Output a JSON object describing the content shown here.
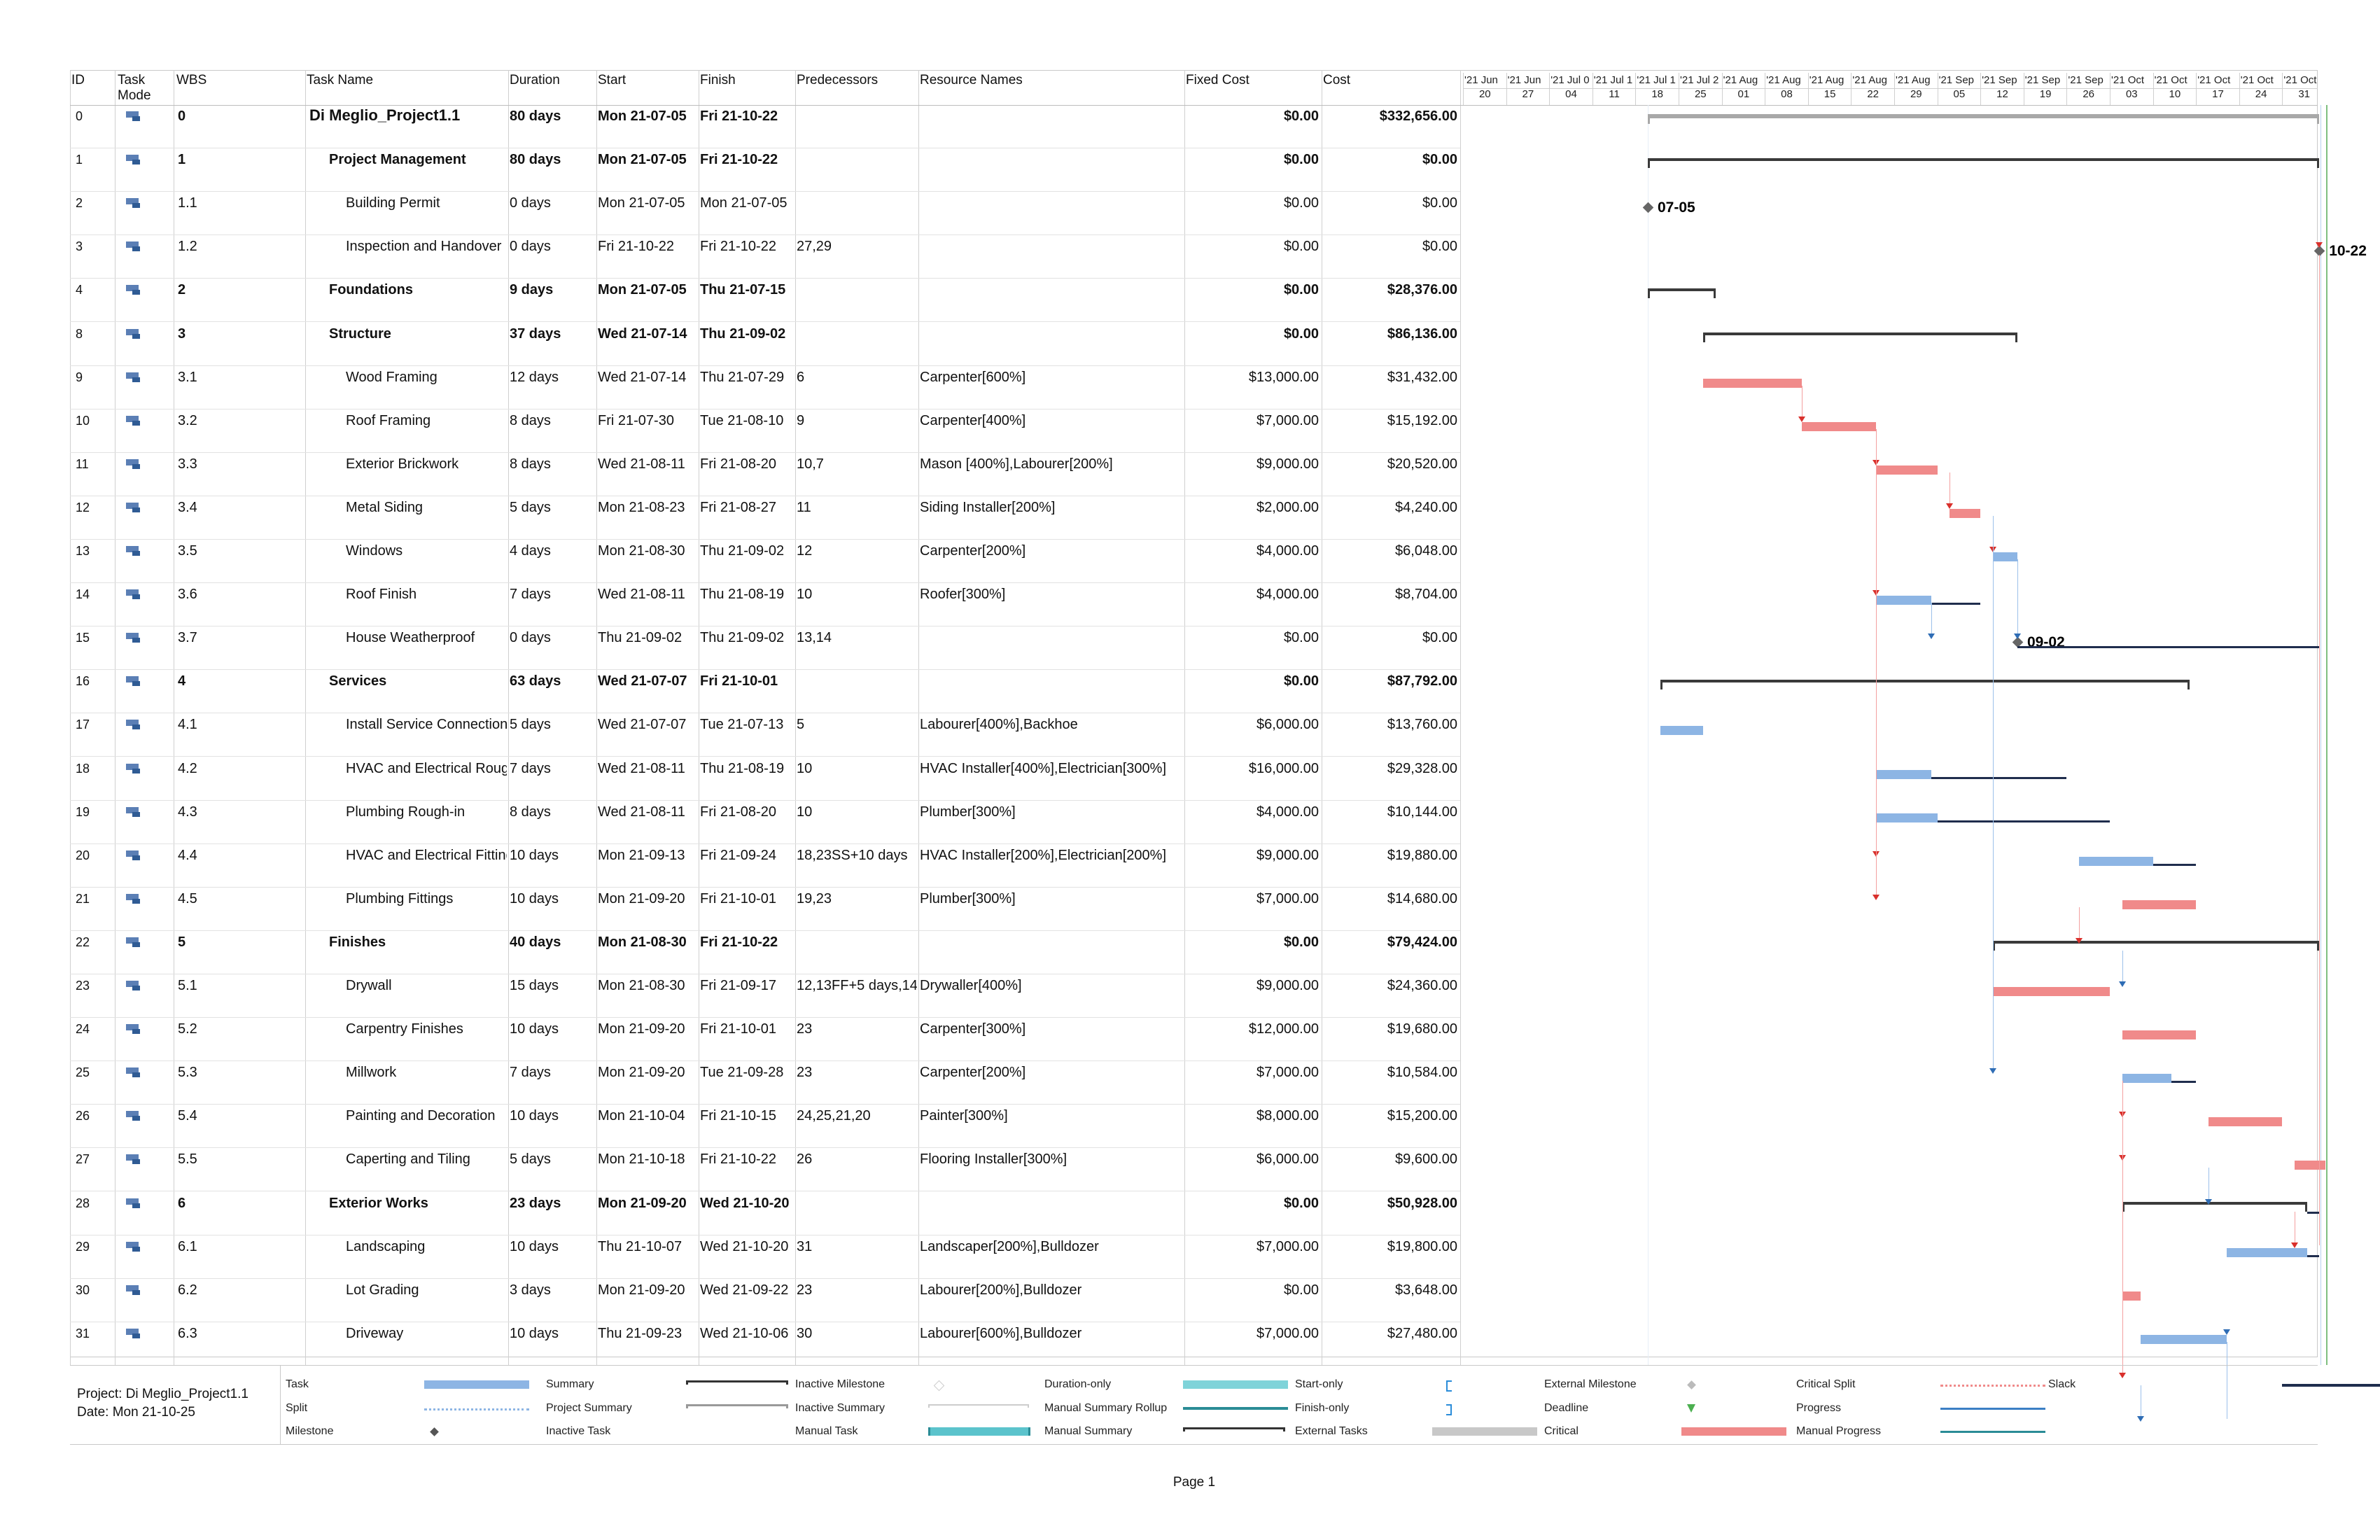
{
  "columns": {
    "id": "ID",
    "task_mode": "Task\nMode",
    "wbs": "WBS",
    "task_name": "Task Name",
    "duration": "Duration",
    "start": "Start",
    "finish": "Finish",
    "predecessors": "Predecessors",
    "resources": "Resource Names",
    "fixed_cost": "Fixed Cost",
    "cost": "Cost"
  },
  "timescale": [
    {
      "top": "'21 Jun",
      "bottom": "20"
    },
    {
      "top": "'21 Jun",
      "bottom": "27"
    },
    {
      "top": "'21 Jul 0",
      "bottom": "04"
    },
    {
      "top": "'21 Jul 1",
      "bottom": "11"
    },
    {
      "top": "'21 Jul 1",
      "bottom": "18"
    },
    {
      "top": "'21 Jul 2",
      "bottom": "25"
    },
    {
      "top": "'21 Aug",
      "bottom": "01"
    },
    {
      "top": "'21 Aug",
      "bottom": "08"
    },
    {
      "top": "'21 Aug",
      "bottom": "15"
    },
    {
      "top": "'21 Aug",
      "bottom": "22"
    },
    {
      "top": "'21 Aug",
      "bottom": "29"
    },
    {
      "top": "'21 Sep",
      "bottom": "05"
    },
    {
      "top": "'21 Sep",
      "bottom": "12"
    },
    {
      "top": "'21 Sep",
      "bottom": "19"
    },
    {
      "top": "'21 Sep",
      "bottom": "26"
    },
    {
      "top": "'21 Oct",
      "bottom": "03"
    },
    {
      "top": "'21 Oct",
      "bottom": "10"
    },
    {
      "top": "'21 Oct",
      "bottom": "17"
    },
    {
      "top": "'21 Oct",
      "bottom": "24"
    },
    {
      "top": "'21 Oct",
      "bottom": "31"
    }
  ],
  "tasks": [
    {
      "id": "0",
      "wbs": "0",
      "name": "Di Meglio_Project1.1",
      "duration": "80 days",
      "start": "Mon 21-07-05",
      "finish": "Fri 21-10-22",
      "pred": "",
      "res": "",
      "fixed": "$0.00",
      "cost": "$332,656.00",
      "kind": "project",
      "level": 0,
      "s": 15,
      "f": 124,
      "critical": false
    },
    {
      "id": "1",
      "wbs": "1",
      "name": "Project Management",
      "duration": "80 days",
      "start": "Mon 21-07-05",
      "finish": "Fri 21-10-22",
      "pred": "",
      "res": "",
      "fixed": "$0.00",
      "cost": "$0.00",
      "kind": "summary",
      "level": 1,
      "s": 15,
      "f": 124,
      "critical": false
    },
    {
      "id": "2",
      "wbs": "1.1",
      "name": "Building Permit",
      "duration": "0 days",
      "start": "Mon 21-07-05",
      "finish": "Mon 21-07-05",
      "pred": "",
      "res": "",
      "fixed": "$0.00",
      "cost": "$0.00",
      "kind": "milestone",
      "level": 2,
      "s": 15,
      "f": 15,
      "critical": false,
      "label": "07-05"
    },
    {
      "id": "3",
      "wbs": "1.2",
      "name": "Inspection and Handover",
      "duration": "0 days",
      "start": "Fri 21-10-22",
      "finish": "Fri 21-10-22",
      "pred": "27,29",
      "res": "",
      "fixed": "$0.00",
      "cost": "$0.00",
      "kind": "milestone",
      "level": 2,
      "s": 124,
      "f": 124,
      "critical": false,
      "label": "10-22"
    },
    {
      "id": "4",
      "wbs": "2",
      "name": "Foundations",
      "duration": "9 days",
      "start": "Mon 21-07-05",
      "finish": "Thu 21-07-15",
      "pred": "",
      "res": "",
      "fixed": "$0.00",
      "cost": "$28,376.00",
      "kind": "summary",
      "level": 1,
      "s": 15,
      "f": 26,
      "critical": false
    },
    {
      "id": "8",
      "wbs": "3",
      "name": "Structure",
      "duration": "37 days",
      "start": "Wed 21-07-14",
      "finish": "Thu 21-09-02",
      "pred": "",
      "res": "",
      "fixed": "$0.00",
      "cost": "$86,136.00",
      "kind": "summary",
      "level": 1,
      "s": 24,
      "f": 75,
      "critical": false
    },
    {
      "id": "9",
      "wbs": "3.1",
      "name": "Wood Framing",
      "duration": "12 days",
      "start": "Wed 21-07-14",
      "finish": "Thu 21-07-29",
      "pred": "6",
      "res": "Carpenter[600%]",
      "fixed": "$13,000.00",
      "cost": "$31,432.00",
      "kind": "task",
      "level": 2,
      "s": 24,
      "f": 40,
      "critical": true
    },
    {
      "id": "10",
      "wbs": "3.2",
      "name": "Roof Framing",
      "duration": "8 days",
      "start": "Fri 21-07-30",
      "finish": "Tue 21-08-10",
      "pred": "9",
      "res": "Carpenter[400%]",
      "fixed": "$7,000.00",
      "cost": "$15,192.00",
      "kind": "task",
      "level": 2,
      "s": 40,
      "f": 52,
      "critical": true
    },
    {
      "id": "11",
      "wbs": "3.3",
      "name": "Exterior Brickwork",
      "duration": "8 days",
      "start": "Wed 21-08-11",
      "finish": "Fri 21-08-20",
      "pred": "10,7",
      "res": "Mason [400%],Labourer[200%]",
      "fixed": "$9,000.00",
      "cost": "$20,520.00",
      "kind": "task",
      "level": 2,
      "s": 52,
      "f": 62,
      "critical": true
    },
    {
      "id": "12",
      "wbs": "3.4",
      "name": "Metal Siding",
      "duration": "5 days",
      "start": "Mon 21-08-23",
      "finish": "Fri 21-08-27",
      "pred": "11",
      "res": "Siding Installer[200%]",
      "fixed": "$2,000.00",
      "cost": "$4,240.00",
      "kind": "task",
      "level": 2,
      "s": 64,
      "f": 69,
      "critical": true
    },
    {
      "id": "13",
      "wbs": "3.5",
      "name": "Windows",
      "duration": "4 days",
      "start": "Mon 21-08-30",
      "finish": "Thu 21-09-02",
      "pred": "12",
      "res": "Carpenter[200%]",
      "fixed": "$4,000.00",
      "cost": "$6,048.00",
      "kind": "task",
      "level": 2,
      "s": 71,
      "f": 75,
      "critical": false
    },
    {
      "id": "14",
      "wbs": "3.6",
      "name": "Roof Finish",
      "duration": "7 days",
      "start": "Wed 21-08-11",
      "finish": "Thu 21-08-19",
      "pred": "10",
      "res": "Roofer[300%]",
      "fixed": "$4,000.00",
      "cost": "$8,704.00",
      "kind": "task",
      "level": 2,
      "s": 52,
      "f": 61,
      "critical": false,
      "slack": 69
    },
    {
      "id": "15",
      "wbs": "3.7",
      "name": "House Weatherproof",
      "duration": "0 days",
      "start": "Thu 21-09-02",
      "finish": "Thu 21-09-02",
      "pred": "13,14",
      "res": "",
      "fixed": "$0.00",
      "cost": "$0.00",
      "kind": "milestone",
      "level": 2,
      "s": 75,
      "f": 75,
      "critical": false,
      "label": "09-02",
      "slack": 124
    },
    {
      "id": "16",
      "wbs": "4",
      "name": "Services",
      "duration": "63 days",
      "start": "Wed 21-07-07",
      "finish": "Fri 21-10-01",
      "pred": "",
      "res": "",
      "fixed": "$0.00",
      "cost": "$87,792.00",
      "kind": "summary",
      "level": 1,
      "s": 17,
      "f": 103,
      "critical": false
    },
    {
      "id": "17",
      "wbs": "4.1",
      "name": "Install Service Connections",
      "duration": "5 days",
      "start": "Wed 21-07-07",
      "finish": "Tue 21-07-13",
      "pred": "5",
      "res": "Labourer[400%],Backhoe",
      "fixed": "$6,000.00",
      "cost": "$13,760.00",
      "kind": "task",
      "level": 2,
      "s": 17,
      "f": 24,
      "critical": false
    },
    {
      "id": "18",
      "wbs": "4.2",
      "name": "HVAC and Electrical Rough-in",
      "duration": "7 days",
      "start": "Wed 21-08-11",
      "finish": "Thu 21-08-19",
      "pred": "10",
      "res": "HVAC Installer[400%],Electrician[300%]",
      "fixed": "$16,000.00",
      "cost": "$29,328.00",
      "kind": "task",
      "level": 2,
      "s": 52,
      "f": 61,
      "critical": false,
      "slack": 83
    },
    {
      "id": "19",
      "wbs": "4.3",
      "name": "Plumbing Rough-in",
      "duration": "8 days",
      "start": "Wed 21-08-11",
      "finish": "Fri 21-08-20",
      "pred": "10",
      "res": "Plumber[300%]",
      "fixed": "$4,000.00",
      "cost": "$10,144.00",
      "kind": "task",
      "level": 2,
      "s": 52,
      "f": 62,
      "critical": false,
      "slack": 90
    },
    {
      "id": "20",
      "wbs": "4.4",
      "name": "HVAC and Electrical Fittings",
      "duration": "10 days",
      "start": "Mon 21-09-13",
      "finish": "Fri 21-09-24",
      "pred": "18,23SS+10 days",
      "res": "HVAC Installer[200%],Electrician[200%]",
      "fixed": "$9,000.00",
      "cost": "$19,880.00",
      "kind": "task",
      "level": 2,
      "s": 85,
      "f": 97,
      "critical": false,
      "slack": 104
    },
    {
      "id": "21",
      "wbs": "4.5",
      "name": "Plumbing Fittings",
      "duration": "10 days",
      "start": "Mon 21-09-20",
      "finish": "Fri 21-10-01",
      "pred": "19,23",
      "res": "Plumber[300%]",
      "fixed": "$7,000.00",
      "cost": "$14,680.00",
      "kind": "task",
      "level": 2,
      "s": 92,
      "f": 104,
      "critical": true
    },
    {
      "id": "22",
      "wbs": "5",
      "name": "Finishes",
      "duration": "40 days",
      "start": "Mon 21-08-30",
      "finish": "Fri 21-10-22",
      "pred": "",
      "res": "",
      "fixed": "$0.00",
      "cost": "$79,424.00",
      "kind": "summary",
      "level": 1,
      "s": 71,
      "f": 124,
      "critical": false
    },
    {
      "id": "23",
      "wbs": "5.1",
      "name": "Drywall",
      "duration": "15 days",
      "start": "Mon 21-08-30",
      "finish": "Fri 21-09-17",
      "pred": "12,13FF+5 days,14",
      "res": "Drywaller[400%]",
      "fixed": "$9,000.00",
      "cost": "$24,360.00",
      "kind": "task",
      "level": 2,
      "s": 71,
      "f": 90,
      "critical": true
    },
    {
      "id": "24",
      "wbs": "5.2",
      "name": "Carpentry Finishes",
      "duration": "10 days",
      "start": "Mon 21-09-20",
      "finish": "Fri 21-10-01",
      "pred": "23",
      "res": "Carpenter[300%]",
      "fixed": "$12,000.00",
      "cost": "$19,680.00",
      "kind": "task",
      "level": 2,
      "s": 92,
      "f": 104,
      "critical": true
    },
    {
      "id": "25",
      "wbs": "5.3",
      "name": "Millwork",
      "duration": "7 days",
      "start": "Mon 21-09-20",
      "finish": "Tue 21-09-28",
      "pred": "23",
      "res": "Carpenter[200%]",
      "fixed": "$7,000.00",
      "cost": "$10,584.00",
      "kind": "task",
      "level": 2,
      "s": 92,
      "f": 100,
      "critical": false,
      "slack": 104
    },
    {
      "id": "26",
      "wbs": "5.4",
      "name": "Painting and Decoration",
      "duration": "10 days",
      "start": "Mon 21-10-04",
      "finish": "Fri 21-10-15",
      "pred": "24,25,21,20",
      "res": "Painter[300%]",
      "fixed": "$8,000.00",
      "cost": "$15,200.00",
      "kind": "task",
      "level": 2,
      "s": 106,
      "f": 118,
      "critical": true
    },
    {
      "id": "27",
      "wbs": "5.5",
      "name": "Caperting and Tiling",
      "duration": "5 days",
      "start": "Mon 21-10-18",
      "finish": "Fri 21-10-22",
      "pred": "26",
      "res": "Flooring Installer[300%]",
      "fixed": "$6,000.00",
      "cost": "$9,600.00",
      "kind": "task",
      "level": 2,
      "s": 120,
      "f": 125,
      "critical": true
    },
    {
      "id": "28",
      "wbs": "6",
      "name": "Exterior Works",
      "duration": "23 days",
      "start": "Mon 21-09-20",
      "finish": "Wed 21-10-20",
      "pred": "",
      "res": "",
      "fixed": "$0.00",
      "cost": "$50,928.00",
      "kind": "summary",
      "level": 1,
      "s": 92,
      "f": 122,
      "critical": false,
      "slack": 124
    },
    {
      "id": "29",
      "wbs": "6.1",
      "name": "Landscaping",
      "duration": "10 days",
      "start": "Thu 21-10-07",
      "finish": "Wed 21-10-20",
      "pred": "31",
      "res": "Landscaper[200%],Bulldozer",
      "fixed": "$7,000.00",
      "cost": "$19,800.00",
      "kind": "task",
      "level": 2,
      "s": 109,
      "f": 122,
      "critical": false,
      "slack": 124
    },
    {
      "id": "30",
      "wbs": "6.2",
      "name": "Lot Grading",
      "duration": "3 days",
      "start": "Mon 21-09-20",
      "finish": "Wed 21-09-22",
      "pred": "23",
      "res": "Labourer[200%],Bulldozer",
      "fixed": "$0.00",
      "cost": "$3,648.00",
      "kind": "task",
      "level": 2,
      "s": 92,
      "f": 95,
      "critical": true
    },
    {
      "id": "31",
      "wbs": "6.3",
      "name": "Driveway",
      "duration": "10 days",
      "start": "Thu 21-09-23",
      "finish": "Wed 21-10-06",
      "pred": "30",
      "res": "Labourer[600%],Bulldozer",
      "fixed": "$7,000.00",
      "cost": "$27,480.00",
      "kind": "task",
      "level": 2,
      "s": 95,
      "f": 109,
      "critical": false
    }
  ],
  "footer": {
    "project": "Project: Di Meglio_Project1.1",
    "date": "Date: Mon 21-10-25",
    "page": "Page 1"
  },
  "legend": [
    {
      "label": "Task",
      "sym": "task"
    },
    {
      "label": "Split",
      "sym": "split"
    },
    {
      "label": "Milestone",
      "sym": "milestone"
    },
    {
      "label": "Summary",
      "sym": "summary"
    },
    {
      "label": "Project Summary",
      "sym": "projsum"
    },
    {
      "label": "Inactive Task",
      "sym": "none"
    },
    {
      "label": "Inactive Milestone",
      "sym": "inmilestone"
    },
    {
      "label": "Inactive Summary",
      "sym": "insummary"
    },
    {
      "label": "Manual Task",
      "sym": "manualtask"
    },
    {
      "label": "Duration-only",
      "sym": "duronly"
    },
    {
      "label": "Manual Summary Rollup",
      "sym": "msumroll"
    },
    {
      "label": "Manual Summary",
      "sym": "manualsum"
    },
    {
      "label": "Start-only",
      "sym": "startonly"
    },
    {
      "label": "Finish-only",
      "sym": "finishonly"
    },
    {
      "label": "External Tasks",
      "sym": "exttask"
    },
    {
      "label": "External Milestone",
      "sym": "extmilestone"
    },
    {
      "label": "Deadline",
      "sym": "deadline"
    },
    {
      "label": "Critical",
      "sym": "critical"
    },
    {
      "label": "Critical Split",
      "sym": "critsplit"
    },
    {
      "label": "Progress",
      "sym": "progress"
    },
    {
      "label": "Manual Progress",
      "sym": "manualprogress"
    },
    {
      "label": "Slack",
      "sym": "slack"
    }
  ],
  "colors": {
    "task": "#8db5e4",
    "critical": "#f08a8a",
    "summary": "#3a3a3a",
    "project_summary": "#a8a8a8",
    "slack": "#1f2d4d",
    "link_blue": "#9cc0ea",
    "link_red": "#f3a0a0",
    "today": "#7fbf7f",
    "manual": "#5bc3cc"
  }
}
